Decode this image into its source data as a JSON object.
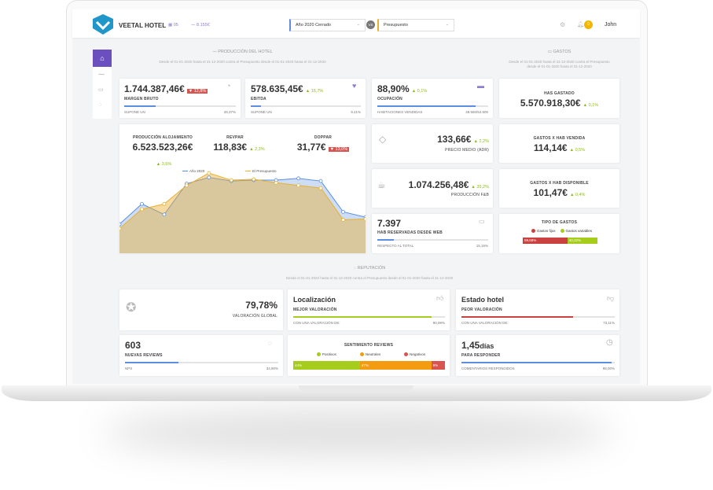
{
  "header": {
    "brand": "VEETAL HOTEL",
    "rooms": "05",
    "revenue": "8.155€",
    "period": "Año 2020 Cerrado",
    "vs": "VS",
    "compare": "Presupuesto",
    "notifications": "0",
    "user": "John"
  },
  "production": {
    "title": "PRODUCCIÓN DEL HOTEL",
    "subtitle": "Desde el 01-01-2020 hasta el 31-12-2020 contra el Presupuesto desde el 01-01-2020 hasta el 31-12-2020"
  },
  "kpis": [
    {
      "value": "1.744.387,46€",
      "change": "▼ 12,8%",
      "label": "MARGEN BRUTO",
      "footer": "SUPONE UN",
      "footer_value": "28,37%"
    },
    {
      "value": "578.635,45€",
      "change": "▲ 15,7%",
      "label": "EBITDA",
      "footer": "SUPONE UN",
      "footer_value": "9,41%"
    },
    {
      "value": "88,90%",
      "change": "▲ 0,1%",
      "label": "OCUPACIÓN",
      "footer": "HABITACIONES VENDIDAS",
      "footer_value": "48.560/54.600"
    }
  ],
  "accommodation": [
    {
      "label": "PRODUCCIÓN ALOJAMIENTO",
      "value": "6.523.523,26€",
      "change": "▲ 3,6%"
    },
    {
      "label": "REVPAR",
      "value": "118,83€",
      "change": "▲ 2,3%"
    },
    {
      "label": "DOPPAR",
      "value": "31,77€",
      "change": "▼ 13,0%"
    }
  ],
  "chart_data": {
    "type": "area",
    "categories": [
      null,
      null,
      null,
      null,
      null,
      null,
      null,
      null,
      null,
      null,
      null,
      null
    ],
    "series": [
      {
        "name": "Año 2020",
        "color": "#5b8ee0",
        "values": [
          33,
          56,
          44,
          79,
          86,
          82,
          83,
          83,
          85,
          82,
          47,
          41
        ]
      },
      {
        "name": "El Presupuesto",
        "color": "#e8b030",
        "values": [
          28,
          50,
          56,
          77,
          91,
          83,
          84,
          80,
          77,
          74,
          38,
          39
        ]
      }
    ],
    "ylim": [
      0,
      100
    ]
  },
  "side": [
    {
      "value": "133,66€",
      "change": "▲ 2,2%",
      "label": "PRECIO MEDIO (ADR)"
    },
    {
      "value": "1.074.256,48€",
      "change": "▲ 35,2%",
      "label": "PRODUCCIÓN F&B"
    }
  ],
  "web": {
    "value": "7.397",
    "label": "HAB RESERVADAS DESDE WEB",
    "footer": "RESPECTO AL TOTAL",
    "footer_value": "15,16%"
  },
  "expenses": {
    "title": "GASTOS",
    "subtitle": "Desde el 01-01-2020 hasta el 31-12-2020 contra el Presupuesto desde el 01-01-2020 hasta el 31-12-2020",
    "cards": [
      {
        "label": "HAS GASTADO",
        "value": "5.570.918,30€",
        "change": "▲ 0,1%"
      },
      {
        "label": "GASTOS X HAB VENDIDA",
        "value": "114,14€",
        "change": "▲ 0,5%"
      },
      {
        "label": "GASTOS X HAB DISPONIBLE",
        "value": "101,47€",
        "change": "▲ 0,4%"
      }
    ],
    "types": {
      "title": "TIPO DE GASTOS",
      "names": [
        "Gastos fijos",
        "Gastos variables"
      ],
      "colors": [
        "#c9423f",
        "#a6cc1c"
      ],
      "values": [
        59.68,
        40.32
      ],
      "value_labels": [
        "59,68%",
        "40,32%"
      ]
    }
  },
  "reputation": {
    "title": "REPUTACIÓN",
    "subtitle": "Desde el 01-01-2020 hasta el 31-12-2020 contra el Presupuesto desde el 01-01-2020 hasta el 31-12-2020",
    "global": {
      "value": "79,78%",
      "label": "VALORACIÓN GLOBAL"
    },
    "best": {
      "title": "Localización",
      "label": "MEJOR VALORACIÓN",
      "footer": "CON UNA VALORACIÓN DE:",
      "footer_value": "90,99%"
    },
    "worst": {
      "title": "Estado hotel",
      "label": "PEOR VALORACIÓN",
      "footer": "CON UNA VALORACIÓN DE:",
      "footer_value": "73,11%"
    },
    "reviews": {
      "value": "603",
      "label": "NUEVAS REVIEWS",
      "footer": "NPS",
      "footer_value": "34,90%"
    },
    "sentiment": {
      "title": "SENTIMIENTO REVIEWS",
      "names": [
        "Positivos",
        "Neutrales",
        "Negativos"
      ],
      "colors": [
        "#a6cc1c",
        "#f39c12",
        "#d9534f"
      ],
      "values": [
        44,
        47,
        9
      ],
      "value_labels": [
        "44%",
        "47%",
        "9%"
      ]
    },
    "response": {
      "value": "1,45",
      "unit": "días",
      "label": "PARA RESPONDER",
      "footer": "COMENTARIOS RESPONDIDOS",
      "footer_value": "98,00%"
    }
  }
}
